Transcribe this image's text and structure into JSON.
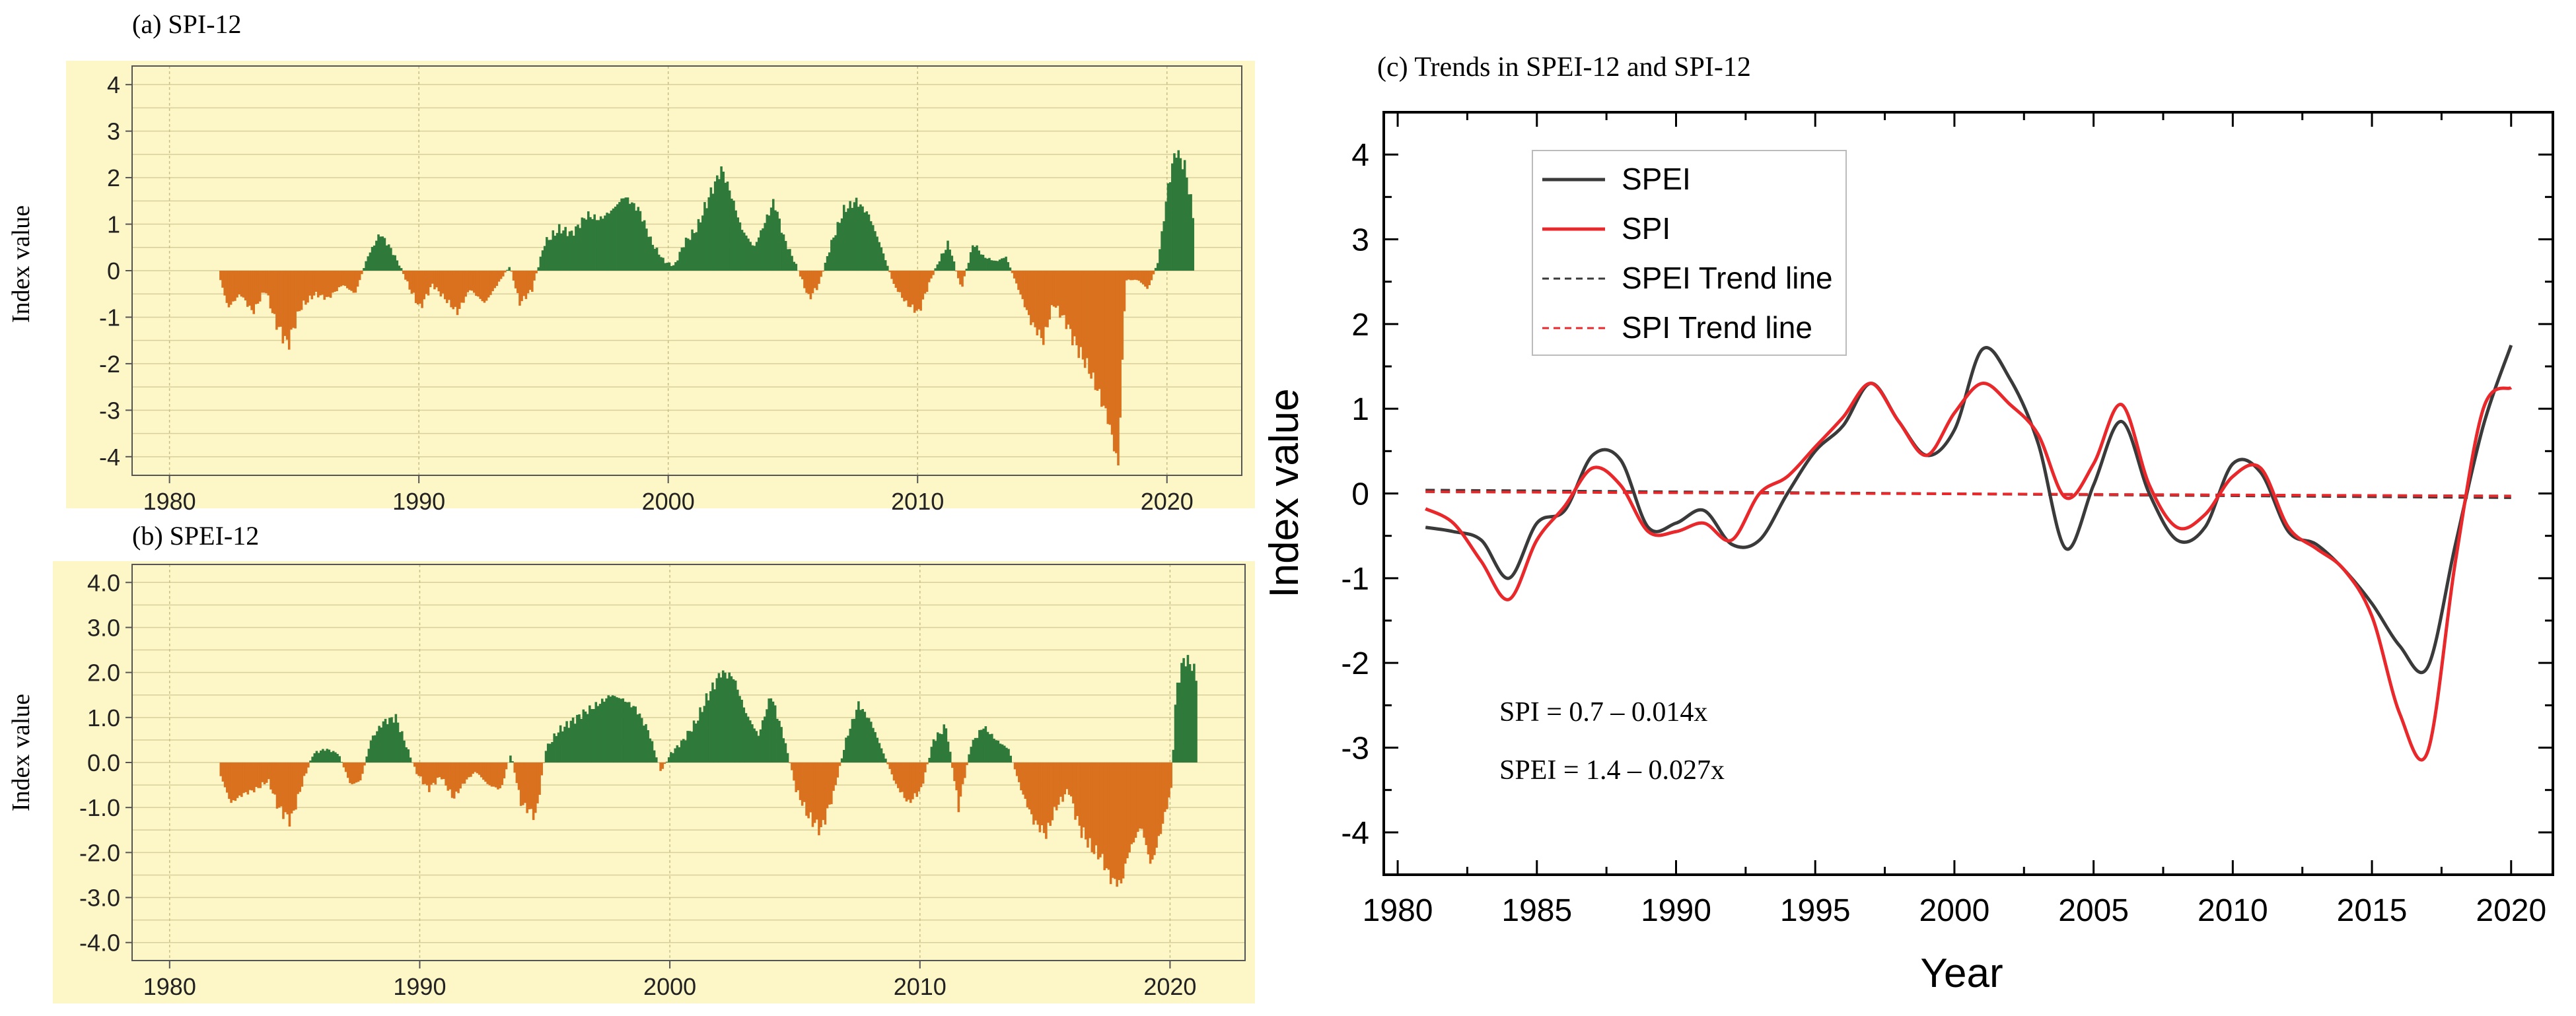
{
  "panels": {
    "a": {
      "title": "(a) SPI-12",
      "ylabel": "Index value",
      "yticks": [
        "-4",
        "-3",
        "-2",
        "-1",
        "0",
        "1",
        "2",
        "3",
        "4"
      ],
      "xticks": [
        "1980",
        "1990",
        "2000",
        "2010",
        "2020"
      ]
    },
    "b": {
      "title": "(b) SPEI-12",
      "ylabel": "Index value",
      "yticks": [
        "-4.0",
        "-3.0",
        "-2.0",
        "-1.0",
        "0.0",
        "1.0",
        "2.0",
        "3.0",
        "4.0"
      ],
      "xticks": [
        "1980",
        "1990",
        "2000",
        "2010",
        "2020"
      ]
    },
    "c": {
      "title": "(c) Trends in SPEI-12 and SPI-12",
      "ylabel": "Index value",
      "xlabel": "Year",
      "yticks": [
        "-4",
        "-3",
        "-2",
        "-1",
        "0",
        "1",
        "2",
        "3",
        "4"
      ],
      "xticks": [
        "1980",
        "1985",
        "1990",
        "1995",
        "2000",
        "2005",
        "2010",
        "2015",
        "2020"
      ],
      "legend": [
        "SPEI",
        "SPI",
        "SPEI Trend line",
        "SPI Trend line"
      ],
      "equations": [
        "SPI = 0.7 – 0.014x",
        "SPEI = 1.4 – 0.027x"
      ]
    }
  },
  "colors": {
    "panel_bg": "#fdf6c6",
    "positive": "#2f7a3b",
    "negative": "#d9711f",
    "spei": "#3a3a3a",
    "spi": "#e8282a"
  },
  "chart_data": [
    {
      "type": "bar",
      "title": "(a) SPI-12",
      "ylabel": "Index value",
      "xlim": [
        1978.5,
        2023
      ],
      "ylim": [
        -4.4,
        4.4
      ],
      "anchors": [
        [
          1982.0,
          -0.2
        ],
        [
          1982.3,
          -0.8
        ],
        [
          1982.8,
          -0.5
        ],
        [
          1983.3,
          -0.9
        ],
        [
          1983.8,
          -0.4
        ],
        [
          1984.2,
          -1.1
        ],
        [
          1984.7,
          -1.6
        ],
        [
          1985.2,
          -0.8
        ],
        [
          1985.8,
          -0.5
        ],
        [
          1986.3,
          -0.6
        ],
        [
          1986.9,
          -0.3
        ],
        [
          1987.4,
          -0.5
        ],
        [
          1987.9,
          0.3
        ],
        [
          1988.4,
          0.8
        ],
        [
          1988.8,
          0.5
        ],
        [
          1989.2,
          0.1
        ],
        [
          1989.6,
          -0.4
        ],
        [
          1990.0,
          -0.8
        ],
        [
          1990.5,
          -0.3
        ],
        [
          1991.0,
          -0.6
        ],
        [
          1991.5,
          -0.9
        ],
        [
          1992.0,
          -0.4
        ],
        [
          1992.6,
          -0.7
        ],
        [
          1993.1,
          -0.3
        ],
        [
          1993.6,
          0.1
        ],
        [
          1994.0,
          -0.7
        ],
        [
          1994.5,
          -0.4
        ],
        [
          1995.0,
          0.6
        ],
        [
          1995.6,
          0.9
        ],
        [
          1996.1,
          0.8
        ],
        [
          1996.7,
          1.2
        ],
        [
          1997.2,
          1.1
        ],
        [
          1997.7,
          1.3
        ],
        [
          1998.2,
          1.6
        ],
        [
          1998.8,
          1.3
        ],
        [
          1999.3,
          0.6
        ],
        [
          1999.8,
          0.2
        ],
        [
          2000.2,
          0.1
        ],
        [
          2000.6,
          0.6
        ],
        [
          2001.1,
          0.9
        ],
        [
          2001.6,
          1.6
        ],
        [
          2002.1,
          2.2
        ],
        [
          2002.5,
          1.6
        ],
        [
          2002.9,
          0.9
        ],
        [
          2003.4,
          0.5
        ],
        [
          2003.8,
          1.0
        ],
        [
          2004.2,
          1.5
        ],
        [
          2004.6,
          0.7
        ],
        [
          2005.1,
          0.1
        ],
        [
          2005.6,
          -0.6
        ],
        [
          2006.0,
          -0.3
        ],
        [
          2006.5,
          0.6
        ],
        [
          2007.0,
          1.3
        ],
        [
          2007.5,
          1.5
        ],
        [
          2008.0,
          1.2
        ],
        [
          2008.5,
          0.5
        ],
        [
          2009.0,
          -0.3
        ],
        [
          2009.5,
          -0.7
        ],
        [
          2010.0,
          -0.9
        ],
        [
          2010.4,
          -0.3
        ],
        [
          2010.8,
          0.2
        ],
        [
          2011.2,
          0.6
        ],
        [
          2011.7,
          -0.4
        ],
        [
          2012.2,
          0.6
        ],
        [
          2012.6,
          0.3
        ],
        [
          2013.1,
          0.2
        ],
        [
          2013.5,
          0.3
        ],
        [
          2014.0,
          -0.4
        ],
        [
          2014.5,
          -1.1
        ],
        [
          2015.0,
          -1.5
        ],
        [
          2015.4,
          -0.7
        ],
        [
          2015.9,
          -1.1
        ],
        [
          2016.3,
          -1.6
        ],
        [
          2016.8,
          -2.1
        ],
        [
          2017.2,
          -2.6
        ],
        [
          2017.6,
          -3.2
        ],
        [
          2018.0,
          -4.2
        ],
        [
          2018.3,
          -0.2
        ],
        [
          2018.8,
          -0.2
        ],
        [
          2019.2,
          -0.4
        ],
        [
          2019.6,
          0.2
        ],
        [
          2020.0,
          1.8
        ],
        [
          2020.3,
          2.6
        ],
        [
          2020.7,
          2.2
        ],
        [
          2021.0,
          1.2
        ]
      ]
    },
    {
      "type": "bar",
      "title": "(b) SPEI-12",
      "ylabel": "Index value",
      "xlim": [
        1978.5,
        2023
      ],
      "ylim": [
        -4.4,
        4.4
      ],
      "anchors": [
        [
          1982.0,
          -0.3
        ],
        [
          1982.4,
          -0.9
        ],
        [
          1982.9,
          -0.7
        ],
        [
          1983.4,
          -0.6
        ],
        [
          1983.9,
          -0.4
        ],
        [
          1984.3,
          -1.0
        ],
        [
          1984.8,
          -1.3
        ],
        [
          1985.3,
          -0.4
        ],
        [
          1985.7,
          0.2
        ],
        [
          1986.2,
          0.3
        ],
        [
          1986.7,
          0.2
        ],
        [
          1987.2,
          -0.5
        ],
        [
          1987.6,
          -0.4
        ],
        [
          1988.0,
          0.5
        ],
        [
          1988.5,
          0.9
        ],
        [
          1989.0,
          1.0
        ],
        [
          1989.4,
          0.4
        ],
        [
          1989.8,
          -0.2
        ],
        [
          1990.3,
          -0.6
        ],
        [
          1990.8,
          -0.3
        ],
        [
          1991.3,
          -0.8
        ],
        [
          1991.8,
          -0.4
        ],
        [
          1992.2,
          -0.2
        ],
        [
          1992.7,
          -0.5
        ],
        [
          1993.2,
          -0.6
        ],
        [
          1993.6,
          0.2
        ],
        [
          1994.0,
          -0.9
        ],
        [
          1994.6,
          -1.2
        ],
        [
          1995.0,
          0.3
        ],
        [
          1995.5,
          0.7
        ],
        [
          1996.0,
          0.9
        ],
        [
          1996.5,
          1.1
        ],
        [
          1997.1,
          1.3
        ],
        [
          1997.6,
          1.5
        ],
        [
          1998.1,
          1.4
        ],
        [
          1998.6,
          1.2
        ],
        [
          1999.1,
          0.7
        ],
        [
          1999.6,
          -0.2
        ],
        [
          2000.0,
          0.2
        ],
        [
          2000.5,
          0.5
        ],
        [
          2001.0,
          0.9
        ],
        [
          2001.5,
          1.5
        ],
        [
          2002.0,
          2.0
        ],
        [
          2002.5,
          1.9
        ],
        [
          2003.0,
          1.1
        ],
        [
          2003.5,
          0.6
        ],
        [
          2004.0,
          1.5
        ],
        [
          2004.5,
          0.6
        ],
        [
          2005.0,
          -0.6
        ],
        [
          2005.5,
          -1.2
        ],
        [
          2006.0,
          -1.5
        ],
        [
          2006.5,
          -0.7
        ],
        [
          2007.0,
          0.5
        ],
        [
          2007.5,
          1.3
        ],
        [
          2008.0,
          0.9
        ],
        [
          2008.5,
          0.2
        ],
        [
          2009.0,
          -0.5
        ],
        [
          2009.5,
          -0.9
        ],
        [
          2010.0,
          -0.6
        ],
        [
          2010.5,
          0.5
        ],
        [
          2011.0,
          0.8
        ],
        [
          2011.5,
          -1.0
        ],
        [
          2012.0,
          0.4
        ],
        [
          2012.5,
          0.8
        ],
        [
          2013.0,
          0.5
        ],
        [
          2013.5,
          0.3
        ],
        [
          2014.0,
          -0.6
        ],
        [
          2014.5,
          -1.3
        ],
        [
          2015.0,
          -1.6
        ],
        [
          2015.4,
          -1.0
        ],
        [
          2015.9,
          -0.6
        ],
        [
          2016.3,
          -1.4
        ],
        [
          2016.8,
          -1.9
        ],
        [
          2017.2,
          -2.1
        ],
        [
          2017.6,
          -2.6
        ],
        [
          2018.0,
          -2.7
        ],
        [
          2018.3,
          -2.0
        ],
        [
          2018.8,
          -1.4
        ],
        [
          2019.2,
          -2.3
        ],
        [
          2019.6,
          -1.5
        ],
        [
          2020.0,
          -0.6
        ],
        [
          2020.2,
          1.6
        ],
        [
          2020.5,
          2.3
        ],
        [
          2020.8,
          2.2
        ],
        [
          2021.0,
          1.9
        ]
      ]
    },
    {
      "type": "line",
      "title": "(c) Trends in SPEI-12 and SPI-12",
      "xlabel": "Year",
      "ylabel": "Index value",
      "xlim": [
        1979.5,
        2021.5
      ],
      "ylim": [
        -4.5,
        4.5
      ],
      "series": [
        {
          "name": "SPEI",
          "style": "solid",
          "x": [
            1981,
            1982,
            1983,
            1984,
            1985,
            1986,
            1987,
            1988,
            1989,
            1990,
            1991,
            1992,
            1993,
            1994,
            1995,
            1996,
            1997,
            1998,
            1999,
            2000,
            2001,
            2002,
            2003,
            2004,
            2005,
            2006,
            2007,
            2008,
            2009,
            2010,
            2011,
            2012,
            2013,
            2014,
            2015,
            2016,
            2017,
            2018,
            2019,
            2020
          ],
          "y": [
            -0.4,
            -0.45,
            -0.55,
            -1.0,
            -0.35,
            -0.2,
            0.45,
            0.4,
            -0.4,
            -0.35,
            -0.2,
            -0.6,
            -0.55,
            0.0,
            0.5,
            0.8,
            1.3,
            0.85,
            0.45,
            0.75,
            1.7,
            1.35,
            0.6,
            -0.65,
            0.1,
            0.85,
            0.0,
            -0.55,
            -0.4,
            0.35,
            0.25,
            -0.45,
            -0.6,
            -0.9,
            -1.3,
            -1.8,
            -2.05,
            -0.6,
            0.8,
            1.75
          ]
        },
        {
          "name": "SPI",
          "style": "solid",
          "x": [
            1981,
            1982,
            1983,
            1984,
            1985,
            1986,
            1987,
            1988,
            1989,
            1990,
            1991,
            1992,
            1993,
            1994,
            1995,
            1996,
            1997,
            1998,
            1999,
            2000,
            2001,
            2002,
            2003,
            2004,
            2005,
            2006,
            2007,
            2008,
            2009,
            2010,
            2011,
            2012,
            2013,
            2014,
            2015,
            2016,
            2017,
            2018,
            2019,
            2020
          ],
          "y": [
            -0.18,
            -0.35,
            -0.8,
            -1.25,
            -0.55,
            -0.15,
            0.3,
            0.1,
            -0.45,
            -0.45,
            -0.35,
            -0.55,
            0.0,
            0.2,
            0.55,
            0.9,
            1.3,
            0.85,
            0.45,
            0.95,
            1.3,
            1.05,
            0.7,
            -0.05,
            0.35,
            1.05,
            0.1,
            -0.4,
            -0.25,
            0.2,
            0.3,
            -0.4,
            -0.65,
            -0.9,
            -1.45,
            -2.6,
            -3.05,
            -0.8,
            1.0,
            1.25
          ]
        },
        {
          "name": "SPEI Trend line",
          "style": "dashed",
          "x": [
            1981,
            2020
          ],
          "y": [
            0.04,
            -0.05
          ]
        },
        {
          "name": "SPI Trend line",
          "style": "dashed",
          "x": [
            1981,
            2020
          ],
          "y": [
            0.02,
            -0.03
          ]
        }
      ]
    }
  ]
}
